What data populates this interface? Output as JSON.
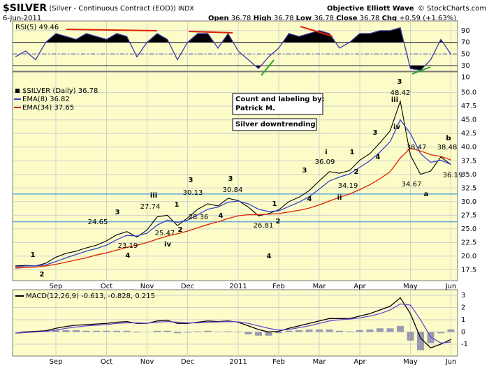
{
  "header": {
    "title": "$SILVER",
    "subtitle": "(Silver - Continuous Contract (EOD))",
    "exchange": "INDX",
    "date": "6-Jun-2011",
    "brand": "Objective Elliott Wave",
    "copyright": "© StockCharts.com",
    "quote": [
      {
        "name": "Open",
        "value": 36.78
      },
      {
        "name": "High",
        "value": 36.78
      },
      {
        "name": "Low",
        "value": 36.78
      },
      {
        "name": "Close",
        "value": 36.78
      },
      {
        "name": "Chg",
        "value": "+0.59 (+1.63%)"
      }
    ]
  },
  "chart_data": [
    {
      "type": "line",
      "ylim": [
        20.4,
        106.6
      ],
      "yticks": [
        10,
        30,
        50,
        70,
        90
      ],
      "grid": true,
      "fill_levels": [
        70,
        30
      ],
      "dash_line": 50,
      "series": [
        {
          "name": "RSI(5)",
          "color": "#3a3aa8",
          "values": [
            45,
            55,
            40,
            70,
            85,
            80,
            75,
            85,
            80,
            75,
            85,
            80,
            45,
            70,
            85,
            75,
            40,
            70,
            85,
            85,
            60,
            85,
            55,
            40,
            25,
            45,
            60,
            85,
            80,
            85,
            90,
            85,
            60,
            70,
            85,
            85,
            90,
            90,
            95,
            25,
            22,
            40,
            75,
            49.46
          ]
        }
      ]
    },
    {
      "type": "line",
      "ylim": [
        15.5,
        53.8
      ],
      "grid": true,
      "yticks": [
        17.5,
        {
          "value": 20,
          "label": "20.0"
        },
        22.5,
        {
          "value": 25,
          "label": "25.0"
        },
        27.5,
        {
          "value": 30,
          "label": "30.0"
        },
        32.5,
        {
          "value": 35,
          "label": "35.0"
        },
        37.5,
        {
          "value": 40,
          "label": "40.0"
        },
        42.5,
        {
          "value": 45,
          "label": "45.0"
        },
        47.5,
        {
          "value": 50,
          "label": "50.0"
        }
      ],
      "categories": [
        null,
        null,
        null,
        null,
        "Sep",
        null,
        null,
        null,
        null,
        "Oct",
        null,
        null,
        null,
        "Nov",
        null,
        null,
        null,
        "Dec",
        null,
        null,
        null,
        null,
        "2011",
        null,
        null,
        null,
        "Feb",
        null,
        null,
        null,
        "Mar",
        null,
        null,
        null,
        "Apr",
        null,
        null,
        null,
        null,
        "May",
        null,
        null,
        null,
        "Jun"
      ],
      "hlines": [
        31.4,
        26.3
      ],
      "hline_color": "#66aadd",
      "series": [
        {
          "name": "$SILVER (Daily)",
          "color": "#000000",
          "values": [
            18.2,
            18.3,
            18.2,
            18.7,
            19.8,
            20.5,
            20.9,
            21.5,
            22.0,
            22.8,
            23.9,
            24.5,
            23.5,
            24.8,
            27.2,
            27.5,
            25.6,
            27.0,
            28.6,
            29.6,
            29.2,
            30.6,
            30.2,
            29.0,
            27.4,
            27.8,
            28.5,
            30.0,
            30.8,
            32.0,
            33.8,
            35.5,
            35.2,
            35.7,
            37.6,
            38.8,
            40.8,
            43.0,
            48.4,
            38.5,
            35.0,
            35.6,
            38.2,
            36.78
          ]
        },
        {
          "name": "EMA(8)",
          "color": "#3344cc",
          "values": [
            18.0,
            18.2,
            18.2,
            18.4,
            19.0,
            19.7,
            20.3,
            20.9,
            21.4,
            22.0,
            23.0,
            23.8,
            23.7,
            24.2,
            25.7,
            26.6,
            26.2,
            26.6,
            27.6,
            28.6,
            29.0,
            29.9,
            30.1,
            29.6,
            28.6,
            28.2,
            28.3,
            29.1,
            29.9,
            30.9,
            32.3,
            33.8,
            34.5,
            35.1,
            36.3,
            37.5,
            39.1,
            41.0,
            45.0,
            42.5,
            38.8,
            37.2,
            37.6,
            36.82
          ]
        },
        {
          "name": "EMA(34)",
          "color": "#dd2200",
          "values": [
            17.8,
            17.9,
            18.0,
            18.2,
            18.5,
            18.9,
            19.3,
            19.7,
            20.2,
            20.6,
            21.1,
            21.6,
            22.0,
            22.5,
            23.1,
            23.7,
            24.1,
            24.6,
            25.2,
            25.8,
            26.3,
            26.9,
            27.4,
            27.6,
            27.6,
            27.7,
            27.8,
            28.1,
            28.4,
            28.8,
            29.4,
            30.1,
            30.8,
            31.4,
            32.2,
            33.1,
            34.2,
            35.5,
            38.0,
            39.8,
            39.3,
            38.6,
            38.3,
            37.65
          ]
        }
      ],
      "notes": [
        [
          "Count and labeling by:",
          "Patrick M."
        ],
        [
          "Silver downtrending"
        ]
      ],
      "annotations": [
        {
          "text": "1",
          "color": "#e8700a"
        },
        {
          "text": "2",
          "color": "#e8700a"
        },
        {
          "text": "3",
          "color": "#e8700a"
        },
        {
          "text": "24.65"
        },
        {
          "text": "4",
          "color": "#e8700a"
        },
        {
          "text": "23.19"
        },
        {
          "text": "iii",
          "color": "#1b8585"
        },
        {
          "text": "27.74"
        },
        {
          "text": "25.47"
        },
        {
          "text": "iv",
          "color": "#1b8585"
        },
        {
          "text": "1",
          "color": "#e8700a"
        },
        {
          "text": "2",
          "color": "#e8700a"
        },
        {
          "text": "3",
          "color": "#e8700a"
        },
        {
          "text": "30.13"
        },
        {
          "text": "28.36"
        },
        {
          "text": "4",
          "color": "#e8700a"
        },
        {
          "text": "3",
          "color": "#1c2a80"
        },
        {
          "text": "30.84"
        },
        {
          "text": "26.81"
        },
        {
          "text": "4",
          "color": "#1c2a80"
        },
        {
          "text": "1",
          "color": "#e8700a"
        },
        {
          "text": "2",
          "color": "#e8700a"
        },
        {
          "text": "3",
          "color": "#e8700a"
        },
        {
          "text": "4",
          "color": "#e8700a"
        },
        {
          "text": "i",
          "color": "#1b8585"
        },
        {
          "text": "36.09"
        },
        {
          "text": "1",
          "color": "#e8700a"
        },
        {
          "text": "2",
          "color": "#e8700a"
        },
        {
          "text": "34.19"
        },
        {
          "text": "ii",
          "color": "#1b8585"
        },
        {
          "text": "3",
          "color": "#e8700a"
        },
        {
          "text": "4",
          "color": "#e8700a"
        },
        {
          "text": "3",
          "color": "#000000"
        },
        {
          "text": "48.42"
        },
        {
          "text": "iii",
          "color": "#1b8585"
        },
        {
          "text": "iv",
          "color": "#1b8585"
        },
        {
          "text": "38.47"
        },
        {
          "text": "34.67"
        },
        {
          "text": "a",
          "color": "#7b2a80"
        },
        {
          "text": "b",
          "color": "#7b2a80"
        },
        {
          "text": "38.48"
        },
        {
          "text": "36.19"
        }
      ]
    },
    {
      "type": "line",
      "ylim": [
        -1.97,
        3.46
      ],
      "yticks": [
        -1,
        0,
        1,
        2,
        3
      ],
      "grid": true,
      "categories": [
        null,
        null,
        null,
        null,
        "Sep",
        null,
        null,
        null,
        null,
        "Oct",
        null,
        null,
        null,
        "Nov",
        null,
        null,
        null,
        "Dec",
        null,
        null,
        null,
        null,
        "2011",
        null,
        null,
        null,
        "Feb",
        null,
        null,
        null,
        "Mar",
        null,
        null,
        null,
        "Apr",
        null,
        null,
        null,
        null,
        "May",
        null,
        null,
        null,
        "Jun"
      ],
      "legend": "MACD(12,26,9) -0.613, -0.828, 0.215",
      "series": [
        {
          "type": "bar",
          "color": "#9a9ab0",
          "values": [
            0,
            0.05,
            0.05,
            0.05,
            0.15,
            0.15,
            0.15,
            0.1,
            0.1,
            0.1,
            0.1,
            0.1,
            -0.05,
            -0.02,
            0.1,
            0.1,
            -0.1,
            -0.05,
            0.05,
            0.1,
            0.03,
            0.05,
            -0.03,
            -0.2,
            -0.3,
            -0.3,
            -0.1,
            0.1,
            0.15,
            0.2,
            0.2,
            0.2,
            0.1,
            0.05,
            0.15,
            0.2,
            0.3,
            0.3,
            0.5,
            -0.7,
            -1.5,
            -0.9,
            -0.1,
            0.215
          ]
        },
        {
          "color": "#000000",
          "values": [
            -0.1,
            0,
            0.05,
            0.1,
            0.3,
            0.45,
            0.55,
            0.6,
            0.65,
            0.7,
            0.8,
            0.85,
            0.7,
            0.7,
            0.9,
            0.95,
            0.7,
            0.7,
            0.8,
            0.9,
            0.85,
            0.9,
            0.8,
            0.5,
            0.2,
            0.0,
            0.05,
            0.3,
            0.5,
            0.7,
            0.9,
            1.1,
            1.1,
            1.1,
            1.3,
            1.5,
            1.8,
            2.1,
            2.8,
            1.5,
            -0.5,
            -1.3,
            -1.0,
            -0.613
          ]
        },
        {
          "color": "#6a4ad0",
          "values": [
            -0.1,
            -0.05,
            0,
            0.05,
            0.15,
            0.3,
            0.4,
            0.5,
            0.55,
            0.6,
            0.7,
            0.75,
            0.75,
            0.72,
            0.8,
            0.85,
            0.8,
            0.75,
            0.75,
            0.8,
            0.82,
            0.85,
            0.83,
            0.7,
            0.5,
            0.3,
            0.15,
            0.2,
            0.35,
            0.5,
            0.7,
            0.9,
            1.0,
            1.05,
            1.15,
            1.3,
            1.5,
            1.8,
            2.3,
            2.2,
            1.0,
            -0.4,
            -0.9,
            -0.828
          ]
        }
      ]
    }
  ]
}
